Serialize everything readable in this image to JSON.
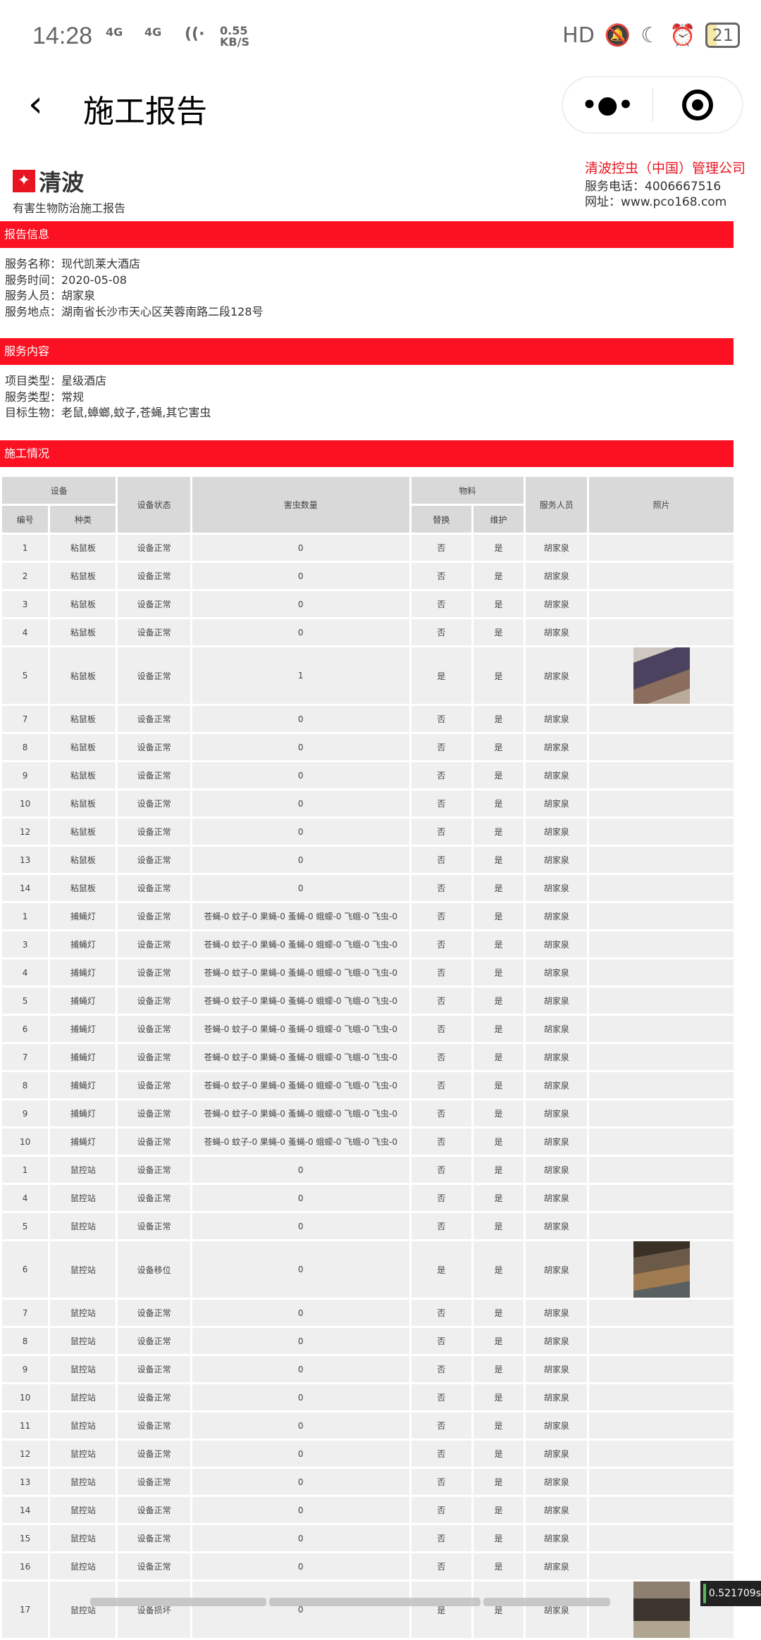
{
  "status_bar": {
    "time": "14:28",
    "net1": "4G",
    "net2": "4G",
    "speed": "0.55 KB/S",
    "hd": "HD",
    "battery": "21"
  },
  "nav": {
    "title": "施工报告",
    "more_label": "•●•"
  },
  "header": {
    "logo_name": "清波",
    "logo_sub": "有害生物防治施工报告",
    "company": "清波控虫（中国）管理公司",
    "phone": "服务电话：4006667516",
    "website": "网址：www.pco168.com"
  },
  "sections": {
    "report_info": {
      "title": "报告信息",
      "lines": [
        "服务名称：现代凯莱大酒店",
        "服务时间：2020-05-08",
        "服务人员：胡家泉",
        "服务地点：湖南省长沙市天心区芙蓉南路二段128号"
      ]
    },
    "service_content": {
      "title": "服务内容",
      "lines": [
        "项目类型：星级酒店",
        "服务类型：常规",
        "目标生物：老鼠,蟑螂,蚊子,苍蝇,其它害虫"
      ]
    },
    "construction": {
      "title": "施工情况"
    }
  },
  "table": {
    "headers": {
      "device": "设备",
      "device_status": "设备状态",
      "pest_count": "害虫数量",
      "material": "物料",
      "staff": "服务人员",
      "photo": "照片",
      "number": "编号",
      "type": "种类",
      "replace": "替换",
      "maintain": "维护"
    },
    "rows": [
      [
        "1",
        "粘鼠板",
        "设备正常",
        "0",
        "否",
        "是",
        "胡家泉",
        ""
      ],
      [
        "2",
        "粘鼠板",
        "设备正常",
        "0",
        "否",
        "是",
        "胡家泉",
        ""
      ],
      [
        "3",
        "粘鼠板",
        "设备正常",
        "0",
        "否",
        "是",
        "胡家泉",
        ""
      ],
      [
        "4",
        "粘鼠板",
        "设备正常",
        "0",
        "否",
        "是",
        "胡家泉",
        ""
      ],
      [
        "5",
        "粘鼠板",
        "设备正常",
        "1",
        "是",
        "是",
        "胡家泉",
        "p1"
      ],
      [
        "7",
        "粘鼠板",
        "设备正常",
        "0",
        "否",
        "是",
        "胡家泉",
        ""
      ],
      [
        "8",
        "粘鼠板",
        "设备正常",
        "0",
        "否",
        "是",
        "胡家泉",
        ""
      ],
      [
        "9",
        "粘鼠板",
        "设备正常",
        "0",
        "否",
        "是",
        "胡家泉",
        ""
      ],
      [
        "10",
        "粘鼠板",
        "设备正常",
        "0",
        "否",
        "是",
        "胡家泉",
        ""
      ],
      [
        "12",
        "粘鼠板",
        "设备正常",
        "0",
        "否",
        "是",
        "胡家泉",
        ""
      ],
      [
        "13",
        "粘鼠板",
        "设备正常",
        "0",
        "否",
        "是",
        "胡家泉",
        ""
      ],
      [
        "14",
        "粘鼠板",
        "设备正常",
        "0",
        "否",
        "是",
        "胡家泉",
        ""
      ],
      [
        "1",
        "捕蝇灯",
        "设备正常",
        "苍蝇-0 蚊子-0 果蝇-0 蚤蝇-0 蛾蠓-0 飞蛾-0 飞虫-0",
        "否",
        "是",
        "胡家泉",
        ""
      ],
      [
        "3",
        "捕蝇灯",
        "设备正常",
        "苍蝇-0 蚊子-0 果蝇-0 蚤蝇-0 蛾蠓-0 飞蛾-0 飞虫-0",
        "否",
        "是",
        "胡家泉",
        ""
      ],
      [
        "4",
        "捕蝇灯",
        "设备正常",
        "苍蝇-0 蚊子-0 果蝇-0 蚤蝇-0 蛾蠓-0 飞蛾-0 飞虫-0",
        "否",
        "是",
        "胡家泉",
        ""
      ],
      [
        "5",
        "捕蝇灯",
        "设备正常",
        "苍蝇-0 蚊子-0 果蝇-0 蚤蝇-0 蛾蠓-0 飞蛾-0 飞虫-0",
        "否",
        "是",
        "胡家泉",
        ""
      ],
      [
        "6",
        "捕蝇灯",
        "设备正常",
        "苍蝇-0 蚊子-0 果蝇-0 蚤蝇-0 蛾蠓-0 飞蛾-0 飞虫-0",
        "否",
        "是",
        "胡家泉",
        ""
      ],
      [
        "7",
        "捕蝇灯",
        "设备正常",
        "苍蝇-0 蚊子-0 果蝇-0 蚤蝇-0 蛾蠓-0 飞蛾-0 飞虫-0",
        "否",
        "是",
        "胡家泉",
        ""
      ],
      [
        "8",
        "捕蝇灯",
        "设备正常",
        "苍蝇-0 蚊子-0 果蝇-0 蚤蝇-0 蛾蠓-0 飞蛾-0 飞虫-0",
        "否",
        "是",
        "胡家泉",
        ""
      ],
      [
        "9",
        "捕蝇灯",
        "设备正常",
        "苍蝇-0 蚊子-0 果蝇-0 蚤蝇-0 蛾蠓-0 飞蛾-0 飞虫-0",
        "否",
        "是",
        "胡家泉",
        ""
      ],
      [
        "10",
        "捕蝇灯",
        "设备正常",
        "苍蝇-0 蚊子-0 果蝇-0 蚤蝇-0 蛾蠓-0 飞蛾-0 飞虫-0",
        "否",
        "是",
        "胡家泉",
        ""
      ],
      [
        "1",
        "鼠控站",
        "设备正常",
        "0",
        "否",
        "是",
        "胡家泉",
        ""
      ],
      [
        "4",
        "鼠控站",
        "设备正常",
        "0",
        "否",
        "是",
        "胡家泉",
        ""
      ],
      [
        "5",
        "鼠控站",
        "设备正常",
        "0",
        "否",
        "是",
        "胡家泉",
        ""
      ],
      [
        "6",
        "鼠控站",
        "设备移位",
        "0",
        "是",
        "是",
        "胡家泉",
        "p2"
      ],
      [
        "7",
        "鼠控站",
        "设备正常",
        "0",
        "否",
        "是",
        "胡家泉",
        ""
      ],
      [
        "8",
        "鼠控站",
        "设备正常",
        "0",
        "否",
        "是",
        "胡家泉",
        ""
      ],
      [
        "9",
        "鼠控站",
        "设备正常",
        "0",
        "否",
        "是",
        "胡家泉",
        ""
      ],
      [
        "10",
        "鼠控站",
        "设备正常",
        "0",
        "否",
        "是",
        "胡家泉",
        ""
      ],
      [
        "11",
        "鼠控站",
        "设备正常",
        "0",
        "否",
        "是",
        "胡家泉",
        ""
      ],
      [
        "12",
        "鼠控站",
        "设备正常",
        "0",
        "否",
        "是",
        "胡家泉",
        ""
      ],
      [
        "13",
        "鼠控站",
        "设备正常",
        "0",
        "否",
        "是",
        "胡家泉",
        ""
      ],
      [
        "14",
        "鼠控站",
        "设备正常",
        "0",
        "否",
        "是",
        "胡家泉",
        ""
      ],
      [
        "15",
        "鼠控站",
        "设备正常",
        "0",
        "否",
        "是",
        "胡家泉",
        ""
      ],
      [
        "16",
        "鼠控站",
        "设备正常",
        "0",
        "否",
        "是",
        "胡家泉",
        ""
      ],
      [
        "17",
        "鼠控站",
        "设备损坏",
        "0",
        "是",
        "是",
        "胡家泉",
        "p3"
      ]
    ]
  },
  "overlay": {
    "timer": "0.521709s"
  },
  "colors": {
    "accent": "#fc1123",
    "header_bg": "#d9d9d9",
    "cell_bg": "#efefef"
  }
}
